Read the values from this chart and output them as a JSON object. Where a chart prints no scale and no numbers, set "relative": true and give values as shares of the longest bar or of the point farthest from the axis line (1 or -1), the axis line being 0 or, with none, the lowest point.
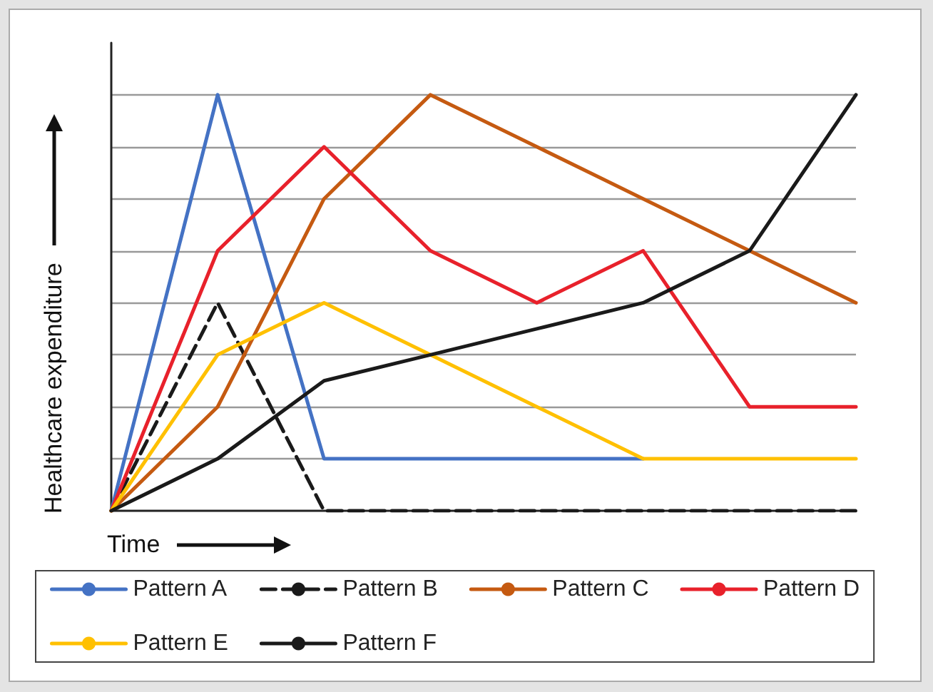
{
  "chart_data": {
    "type": "line",
    "relative": true,
    "xlabel": "Time",
    "ylabel": "Healthcare expenditure",
    "categories": [
      null,
      null,
      null,
      null,
      null,
      null,
      null,
      null
    ],
    "grid": "y",
    "legend": "bottom",
    "marker": "none",
    "line_style": "solid",
    "series": [
      {
        "name": "Pattern A",
        "color": "#4472c4",
        "values": [
          0,
          1,
          0.125,
          0.125,
          0.125,
          0.125,
          null,
          null
        ]
      },
      {
        "name": "Pattern B",
        "color": "#1a1a1a",
        "line_style": "dashed",
        "values": [
          0,
          0.5,
          0,
          0,
          0,
          0,
          0,
          0
        ]
      },
      {
        "name": "Pattern C",
        "color": "#c55a11",
        "values": [
          0,
          0.25,
          0.75,
          1,
          0.875,
          0.75,
          0.625,
          0.5
        ]
      },
      {
        "name": "Pattern D",
        "color": "#e8212b",
        "values": [
          0,
          0.625,
          0.875,
          0.625,
          0.5,
          0.625,
          0.25,
          0.25
        ]
      },
      {
        "name": "Pattern E",
        "color": "#ffc000",
        "values": [
          0,
          0.375,
          0.5,
          0.375,
          0.25,
          0.125,
          0.125,
          0.125
        ]
      },
      {
        "name": "Pattern F",
        "color": "#1a1a1a",
        "values": [
          0,
          0.125,
          0.3125,
          0.375,
          0.4375,
          0.5,
          0.625,
          1
        ]
      }
    ]
  }
}
